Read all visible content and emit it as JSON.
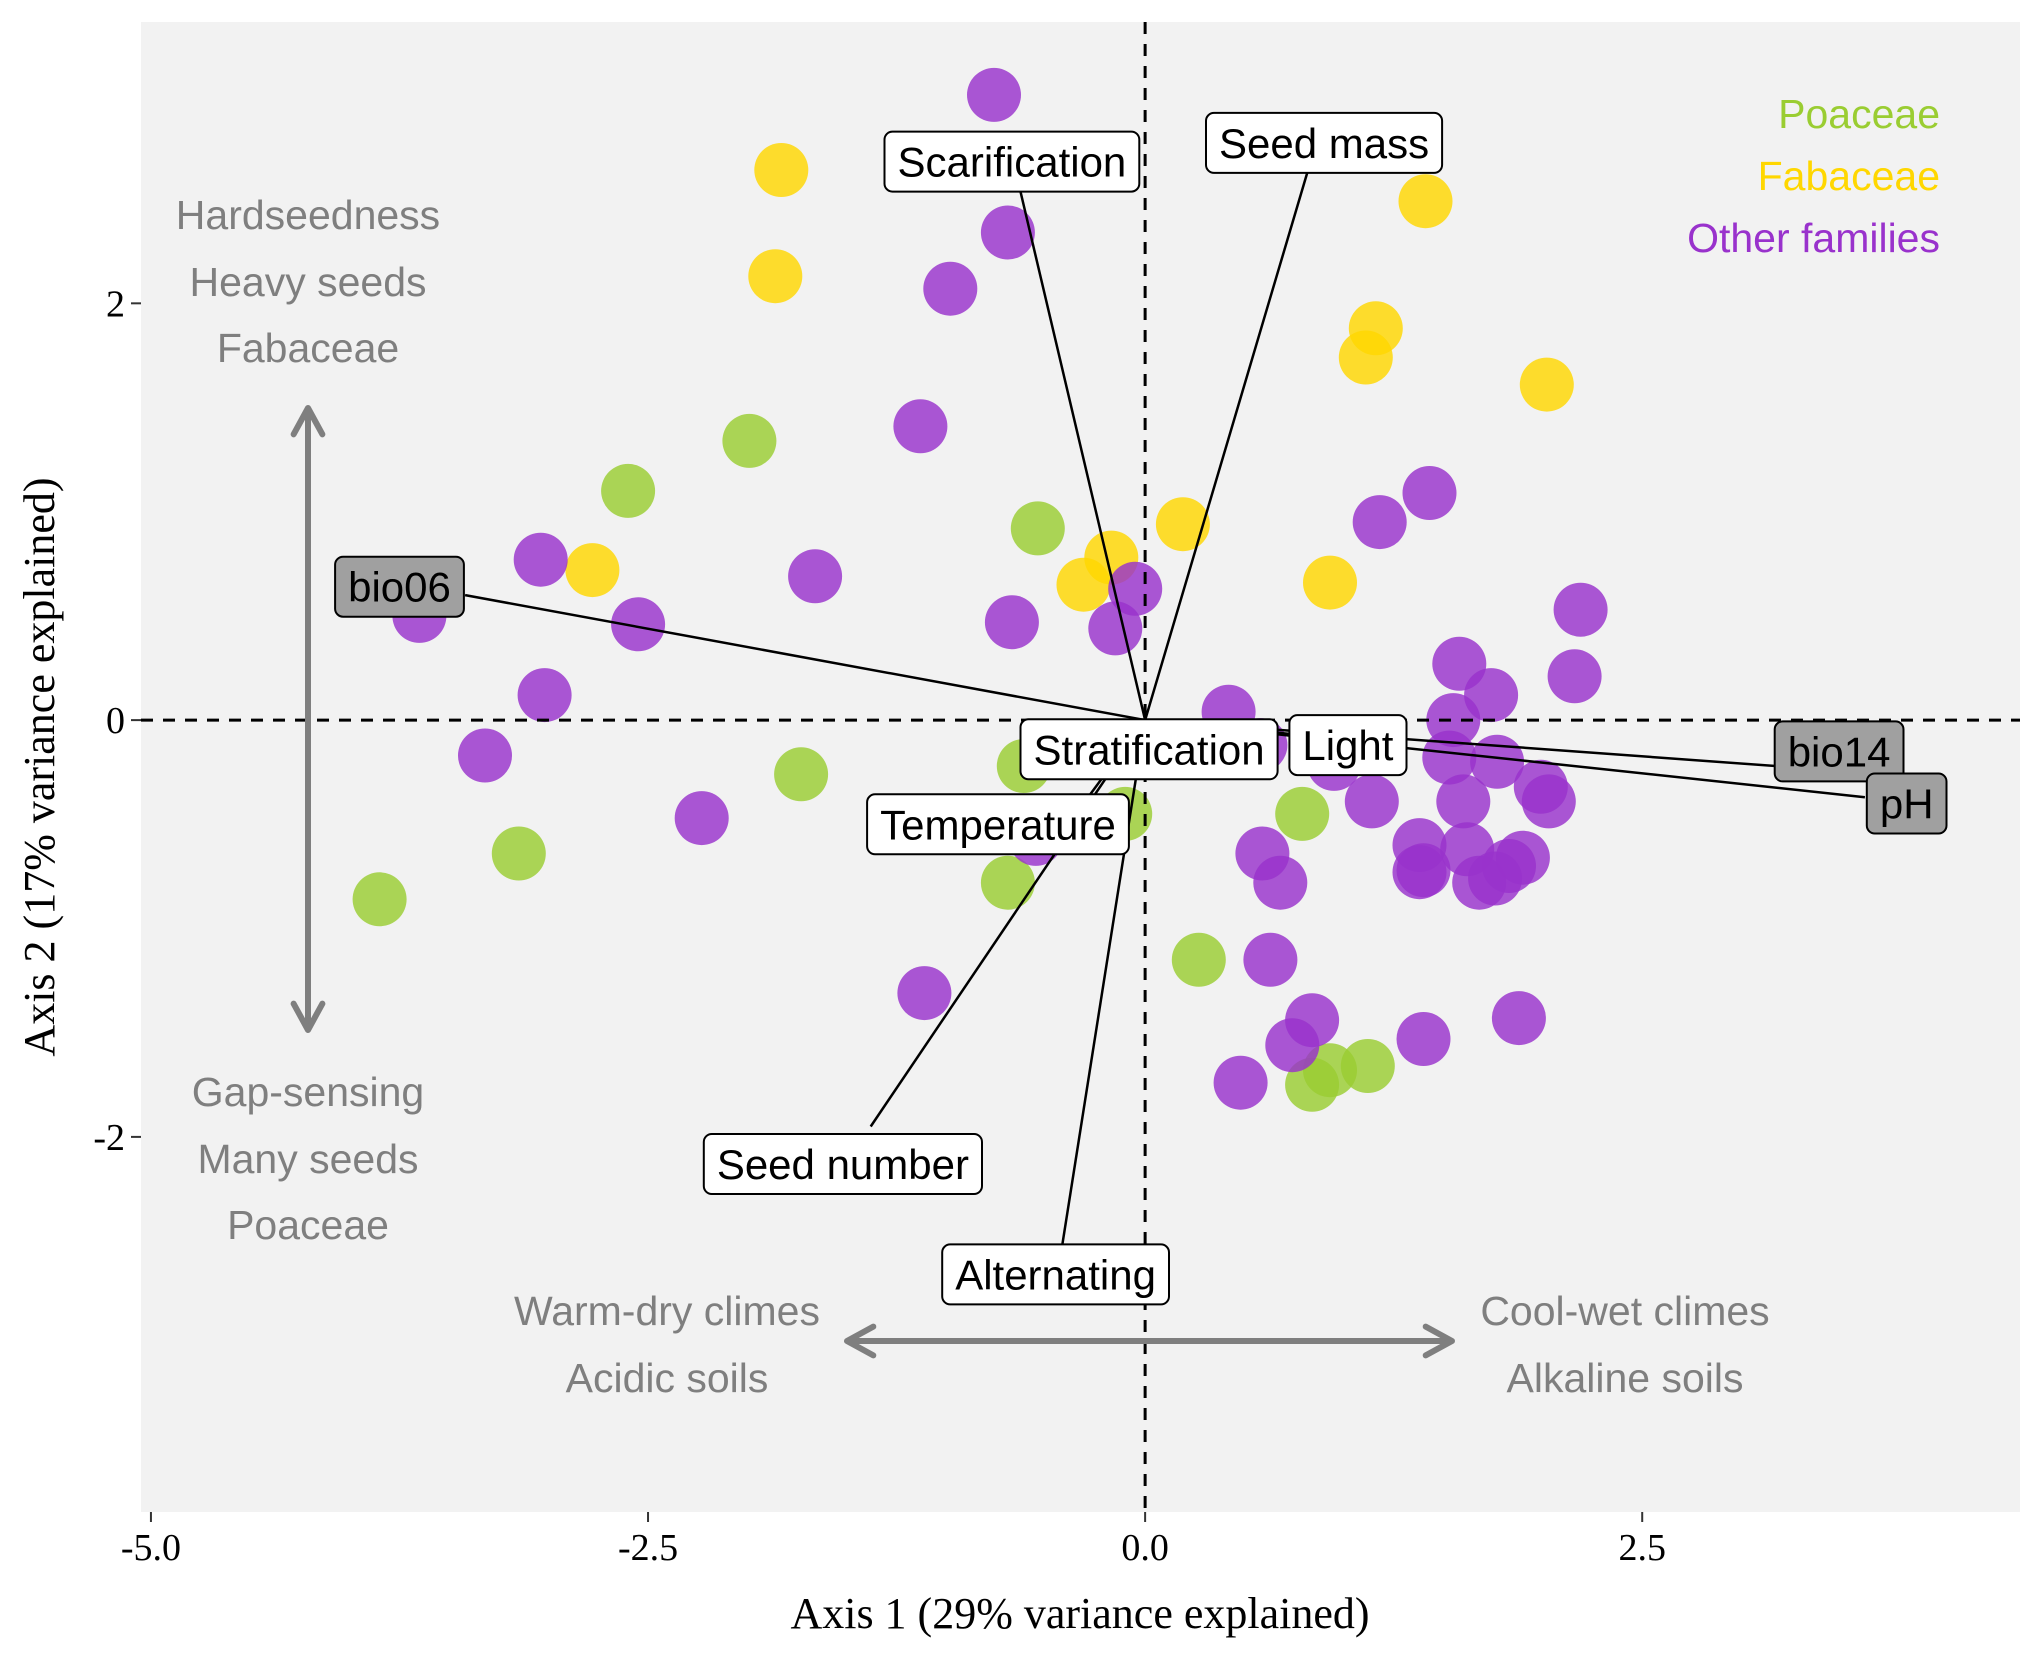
{
  "chart_data": {
    "type": "scatter",
    "xlabel": "Axis 1 (29% variance explained)",
    "ylabel": "Axis 2 (17% variance explained)",
    "xlim": [
      -5.05,
      4.4
    ],
    "ylim": [
      -3.8,
      3.35
    ],
    "xticks": [
      {
        "value": -5.0,
        "label": "-5.0"
      },
      {
        "value": -2.5,
        "label": "-2.5"
      },
      {
        "value": 0.0,
        "label": "0.0"
      },
      {
        "value": 2.5,
        "label": "2.5"
      }
    ],
    "yticks": [
      {
        "value": 2,
        "label": "2"
      },
      {
        "value": 0,
        "label": "0"
      },
      {
        "value": -2,
        "label": "-2"
      }
    ],
    "grid": false,
    "legend_position": "top-right",
    "colors": {
      "Poaceae": "#9acd32",
      "Fabaceae": "#ffd700",
      "Other families": "#9932cc",
      "panel": "#f2f2f2",
      "annotation": "#7f7f7f",
      "highlight_box": "#a0a0a0"
    },
    "series": [
      {
        "name": "Poaceae",
        "points": [
          [
            -1.99,
            1.34
          ],
          [
            -2.6,
            1.1
          ],
          [
            -0.54,
            0.92
          ],
          [
            -3.15,
            -0.64
          ],
          [
            -3.85,
            -0.86
          ],
          [
            -1.73,
            -0.26
          ],
          [
            -0.61,
            -0.22
          ],
          [
            -0.1,
            -0.45
          ],
          [
            -0.69,
            -0.78
          ],
          [
            0.27,
            -1.15
          ],
          [
            0.79,
            -0.45
          ],
          [
            0.84,
            -1.75
          ],
          [
            0.93,
            -1.68
          ],
          [
            1.12,
            -1.66
          ]
        ]
      },
      {
        "name": "Fabaceae",
        "points": [
          [
            -1.83,
            2.64
          ],
          [
            -1.86,
            2.13
          ],
          [
            -2.78,
            0.72
          ],
          [
            -0.17,
            0.78
          ],
          [
            -0.31,
            0.65
          ],
          [
            0.19,
            0.94
          ],
          [
            0.93,
            0.66
          ],
          [
            1.16,
            1.88
          ],
          [
            1.11,
            1.74
          ],
          [
            1.41,
            2.49
          ],
          [
            2.02,
            1.61
          ]
        ]
      },
      {
        "name": "Other families",
        "points": [
          [
            -0.76,
            3.0
          ],
          [
            -0.69,
            2.34
          ],
          [
            -0.98,
            2.07
          ],
          [
            -1.13,
            1.41
          ],
          [
            -1.66,
            0.69
          ],
          [
            -3.04,
            0.77
          ],
          [
            -2.55,
            0.46
          ],
          [
            -3.65,
            0.5
          ],
          [
            -3.02,
            0.12
          ],
          [
            -3.32,
            -0.17
          ],
          [
            -2.23,
            -0.47
          ],
          [
            -0.67,
            0.47
          ],
          [
            -0.15,
            0.44
          ],
          [
            -0.05,
            0.63
          ],
          [
            0.42,
            0.04
          ],
          [
            -1.11,
            -1.31
          ],
          [
            -0.55,
            -0.57
          ],
          [
            0.59,
            -0.64
          ],
          [
            0.68,
            -0.78
          ],
          [
            0.63,
            -1.15
          ],
          [
            0.84,
            -1.44
          ],
          [
            0.74,
            -1.56
          ],
          [
            0.48,
            -1.74
          ],
          [
            0.58,
            -0.12
          ],
          [
            0.95,
            -0.21
          ],
          [
            1.14,
            -0.39
          ],
          [
            1.38,
            -0.6
          ],
          [
            1.4,
            -0.72
          ],
          [
            1.62,
            -0.62
          ],
          [
            1.68,
            -0.78
          ],
          [
            1.83,
            -0.7
          ],
          [
            1.9,
            -0.66
          ],
          [
            1.88,
            -1.43
          ],
          [
            1.4,
            -1.53
          ],
          [
            1.18,
            0.95
          ],
          [
            1.43,
            1.09
          ],
          [
            1.58,
            0.27
          ],
          [
            1.74,
            0.12
          ],
          [
            1.55,
            0.0
          ],
          [
            1.53,
            -0.18
          ],
          [
            1.6,
            -0.39
          ],
          [
            1.77,
            -0.2
          ],
          [
            1.99,
            -0.32
          ],
          [
            2.03,
            -0.39
          ],
          [
            2.16,
            0.21
          ],
          [
            2.19,
            0.53
          ],
          [
            1.38,
            -0.73
          ],
          [
            1.76,
            -0.76
          ]
        ]
      }
    ],
    "vectors": [
      {
        "label": "Scarification",
        "x": -0.66,
        "y": 2.67,
        "box_x": -0.67,
        "box_y": 2.68,
        "highlight": false
      },
      {
        "label": "Seed mass",
        "x": 0.86,
        "y": 2.77,
        "box_x": 0.9,
        "box_y": 2.77,
        "highlight": false
      },
      {
        "label": "bio06",
        "x": -3.42,
        "y": 0.6,
        "box_x": -3.75,
        "box_y": 0.64,
        "highlight": true
      },
      {
        "label": "Stratification",
        "x": -0.1,
        "y": -0.05,
        "box_x": 0.02,
        "box_y": -0.14,
        "highlight": false
      },
      {
        "label": "Light",
        "x": 0.99,
        "y": -0.09,
        "box_x": 1.02,
        "box_y": -0.12,
        "highlight": false
      },
      {
        "label": "bio14",
        "x": 3.45,
        "y": -0.24,
        "box_x": 3.49,
        "box_y": -0.15,
        "highlight": true
      },
      {
        "label": "pH",
        "x": 3.62,
        "y": -0.37,
        "box_x": 3.83,
        "box_y": -0.4,
        "highlight": true
      },
      {
        "label": "Temperature",
        "x": -0.38,
        "y": -0.49,
        "box_x": -0.74,
        "box_y": -0.5,
        "highlight": false
      },
      {
        "label": "Seed number",
        "x": -1.38,
        "y": -1.95,
        "box_x": -1.52,
        "box_y": -2.13,
        "highlight": false
      },
      {
        "label": "Alternating",
        "x": -0.43,
        "y": -2.6,
        "box_x": -0.45,
        "box_y": -2.66,
        "highlight": false
      }
    ],
    "annotations": {
      "top_left": [
        "Hardseedness",
        "Heavy seeds",
        "Fabaceae"
      ],
      "bottom_left": [
        "Gap-sensing",
        "Many seeds",
        "Poaceae"
      ],
      "bottom_center_left": [
        "Warm-dry climes",
        "Acidic soils"
      ],
      "bottom_center_right": [
        "Cool-wet climes",
        "Alkaline soils"
      ]
    },
    "legend": [
      {
        "label": "Poaceae",
        "color": "#9acd32"
      },
      {
        "label": "Fabaceae",
        "color": "#ffd700"
      },
      {
        "label": "Other families",
        "color": "#9932cc"
      }
    ]
  }
}
